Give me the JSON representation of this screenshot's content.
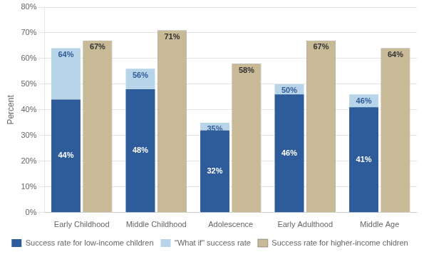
{
  "chart_data": {
    "type": "bar",
    "categories": [
      "Early Childhood",
      "Middle Childhood",
      "Adolescence",
      "Early Adulthood",
      "Middle Age"
    ],
    "series": [
      {
        "name": "Success rate for low-income children",
        "color": "#2E5B9A",
        "values": [
          44,
          48,
          32,
          46,
          41
        ],
        "value_labels": [
          "44%",
          "48%",
          "32%",
          "46%",
          "41%"
        ]
      },
      {
        "name": "\"What if\" success rate",
        "color": "#B8D4E8",
        "values": [
          64,
          56,
          35,
          50,
          46
        ],
        "value_labels": [
          "64%",
          "56%",
          "35%",
          "50%",
          "46%"
        ]
      },
      {
        "name": "Success rate for higher-income chidren",
        "color": "#C8BA96",
        "values": [
          67,
          71,
          58,
          67,
          64
        ],
        "value_labels": [
          "67%",
          "71%",
          "58%",
          "67%",
          "64%"
        ]
      }
    ],
    "ylabel": "Percent",
    "ylim": [
      0,
      80
    ],
    "yticks": [
      {
        "value": 0,
        "label": "0%"
      },
      {
        "value": 10,
        "label": "10%"
      },
      {
        "value": 20,
        "label": "20%"
      },
      {
        "value": 30,
        "label": "30%"
      },
      {
        "value": 40,
        "label": "40%"
      },
      {
        "value": 50,
        "label": "50%"
      },
      {
        "value": 60,
        "label": "60%"
      },
      {
        "value": 70,
        "label": "70%"
      },
      {
        "value": 80,
        "label": "80%"
      }
    ],
    "grid": true,
    "legend": "bottom",
    "data_labels": true
  }
}
